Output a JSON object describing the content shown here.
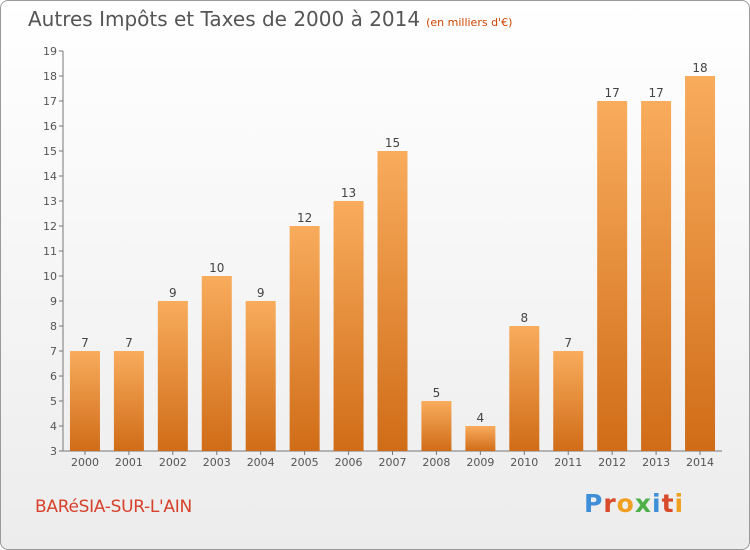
{
  "header": {
    "title": "Autres Impôts et Taxes de 2000 à 2014",
    "subtitle": "(en milliers d'€)"
  },
  "footer": {
    "commune": "BARéSIA-SUR-L'AIN",
    "logo_letters": [
      "P",
      "r",
      "o",
      "x",
      "i",
      "t",
      "i"
    ],
    "logo_colors": [
      "#3f8fd8",
      "#d84a2a",
      "#f0a020",
      "#4fb04a",
      "#3f8fd8",
      "#d84a2a",
      "#f0a020"
    ]
  },
  "chart_data": {
    "type": "bar",
    "title": "Autres Impôts et Taxes de 2000 à 2014",
    "subtitle": "(en milliers d'€)",
    "categories": [
      "2000",
      "2001",
      "2002",
      "2003",
      "2004",
      "2005",
      "2006",
      "2007",
      "2008",
      "2009",
      "2010",
      "2011",
      "2012",
      "2013",
      "2014"
    ],
    "values": [
      7,
      7,
      9,
      10,
      9,
      12,
      13,
      15,
      5,
      4,
      8,
      7,
      17,
      17,
      18
    ],
    "ylim": [
      3,
      19
    ],
    "yticks": [
      3,
      4,
      5,
      6,
      7,
      8,
      9,
      10,
      11,
      12,
      13,
      14,
      15,
      16,
      17,
      18,
      19
    ],
    "grid": false,
    "bar_color": "#f2963c",
    "bar_color_light": "#f8ac5c",
    "bar_color_dark": "#d06c18"
  }
}
